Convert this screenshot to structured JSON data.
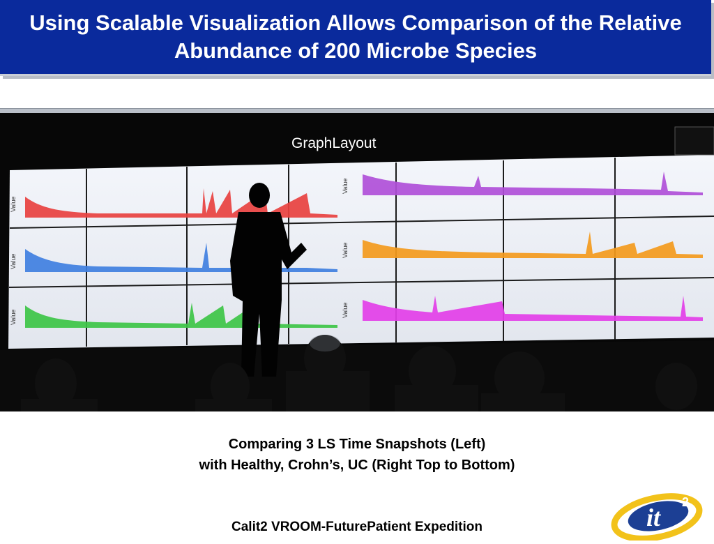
{
  "slide": {
    "title": "Using Scalable Visualization Allows Comparison of the Relative Abundance of 200 Microbe Species",
    "caption_line1": "Comparing 3 LS Time Snapshots (Left)",
    "caption_line2": "with Healthy, Crohn’s, UC (Right Top to Bottom)",
    "footer": "Calit2 VROOM-FuturePatient Expedition"
  },
  "photo": {
    "wall_title": "GraphLayout",
    "axis_label": "Value",
    "left_panel_colors": [
      "#e8413f",
      "#3f7fe0",
      "#3dc447"
    ],
    "right_panel_colors": [
      "#b04fd8",
      "#f39a1c",
      "#e33ee8"
    ]
  },
  "logo": {
    "text": "it",
    "superscript": "2",
    "colors": {
      "ring": "#f2c21a",
      "body": "#1c3f94"
    }
  }
}
